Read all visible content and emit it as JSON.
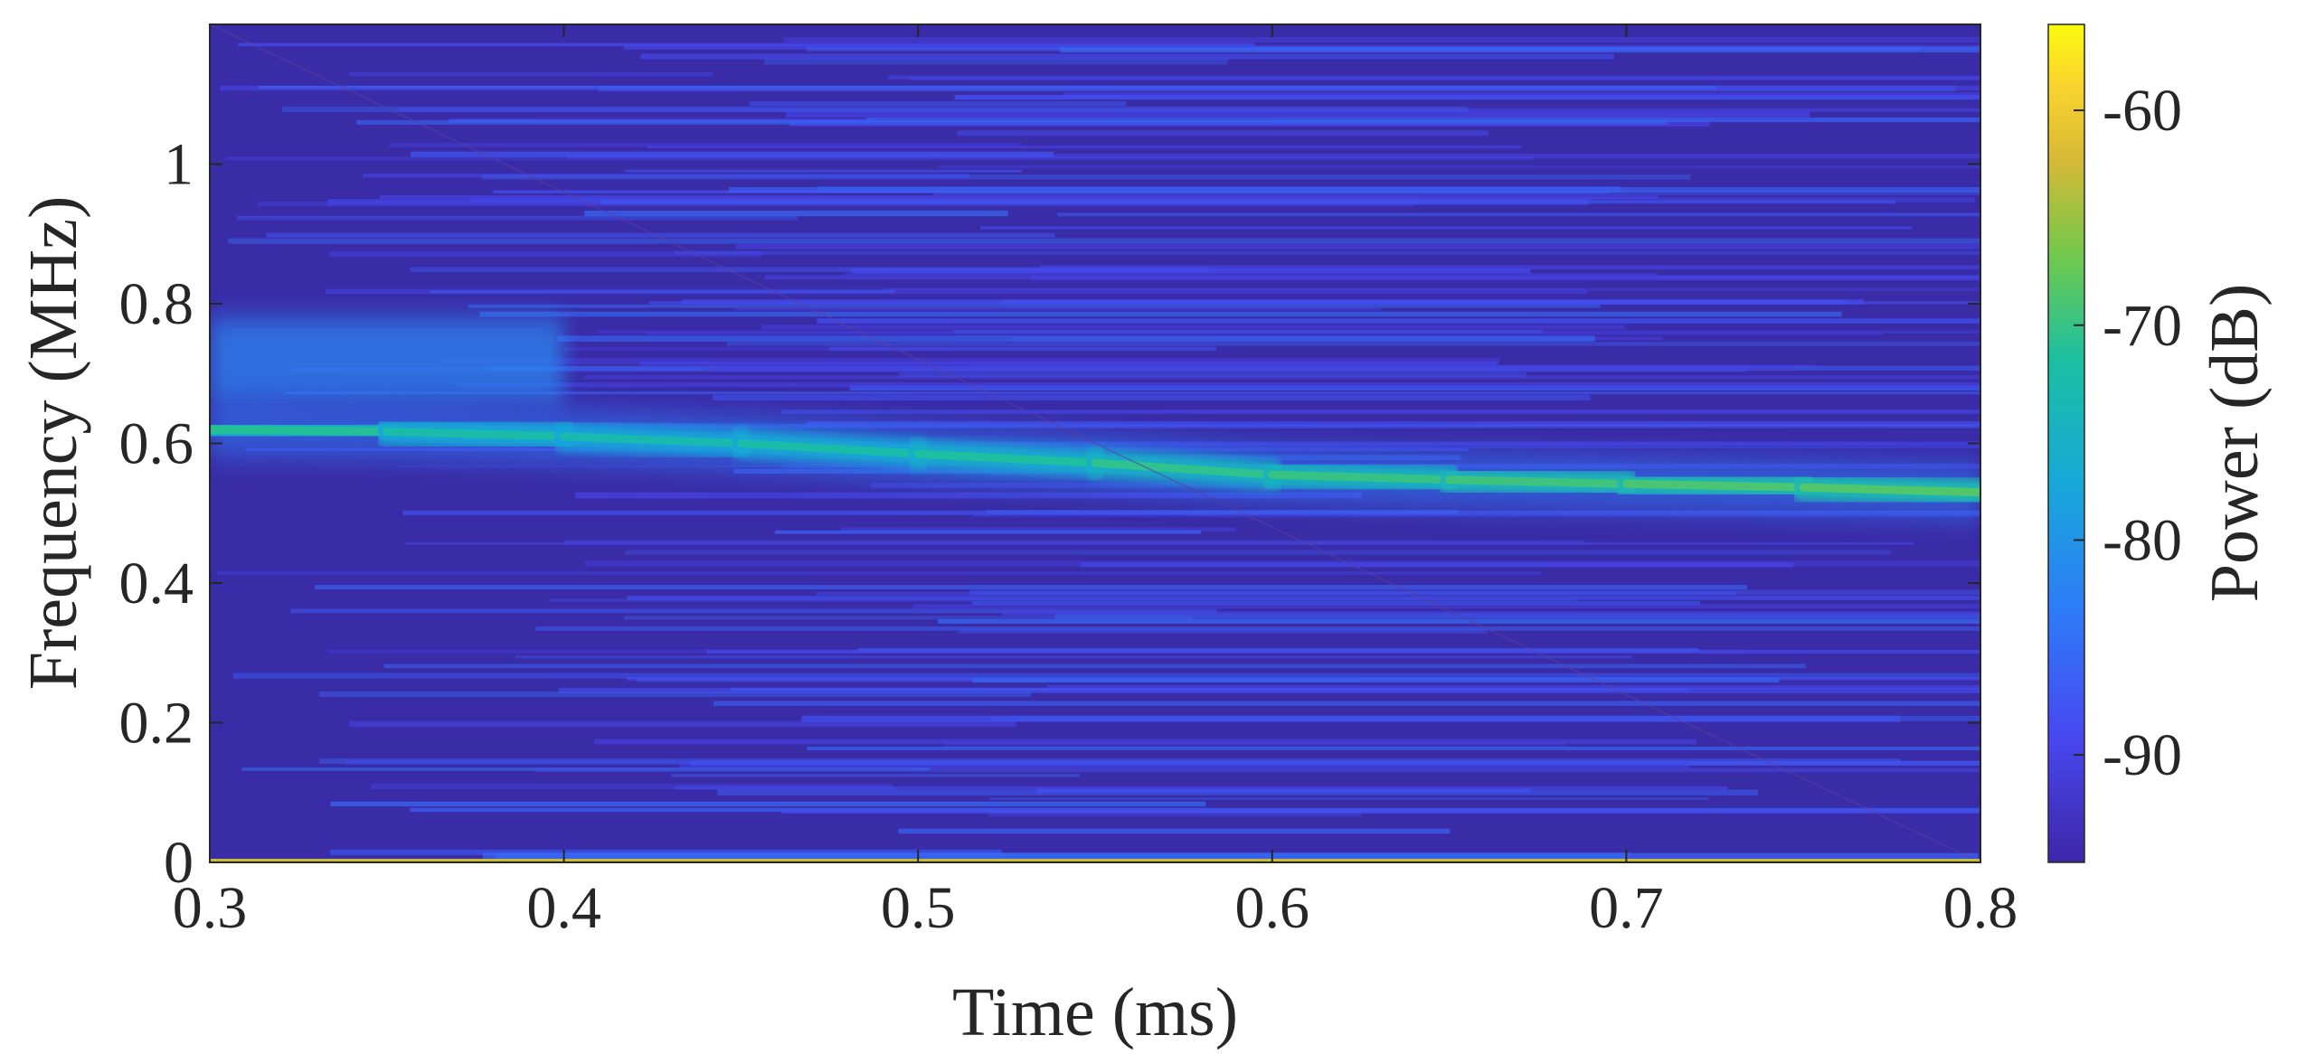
{
  "chart_data": {
    "type": "heatmap",
    "title": "",
    "xlabel": "Time (ms)",
    "ylabel": "Frequency (MHz)",
    "colorbar_label": "Power (dB)",
    "xlim": [
      0.3,
      0.8
    ],
    "ylim": [
      0,
      1.2
    ],
    "clim": [
      -95,
      -56
    ],
    "colormap": "parula",
    "x_ticks": [
      "0.3",
      "0.4",
      "0.5",
      "0.6",
      "0.7",
      "0.8"
    ],
    "y_ticks": [
      "0",
      "0.2",
      "0.4",
      "0.6",
      "0.8",
      "1"
    ],
    "colorbar_ticks": [
      "-60",
      "-70",
      "-80",
      "-90"
    ],
    "background_level_db": -93,
    "dominant_ridge": {
      "time_ms": [
        0.3,
        0.35,
        0.4,
        0.45,
        0.5,
        0.55,
        0.6,
        0.65,
        0.7,
        0.75,
        0.8
      ],
      "frequency_mhz": [
        0.62,
        0.617,
        0.61,
        0.6,
        0.585,
        0.572,
        0.555,
        0.548,
        0.542,
        0.537,
        0.53
      ],
      "power_db": [
        -70,
        -72,
        -73,
        -73,
        -72,
        -71,
        -70,
        -70,
        -69,
        -69,
        -68
      ]
    },
    "secondary_band": {
      "time_ms": [
        0.3,
        0.4
      ],
      "frequency_mhz": [
        0.66,
        0.78
      ],
      "power_db": -82
    },
    "dc_line": {
      "frequency_mhz": 0,
      "power_db": -63
    }
  }
}
